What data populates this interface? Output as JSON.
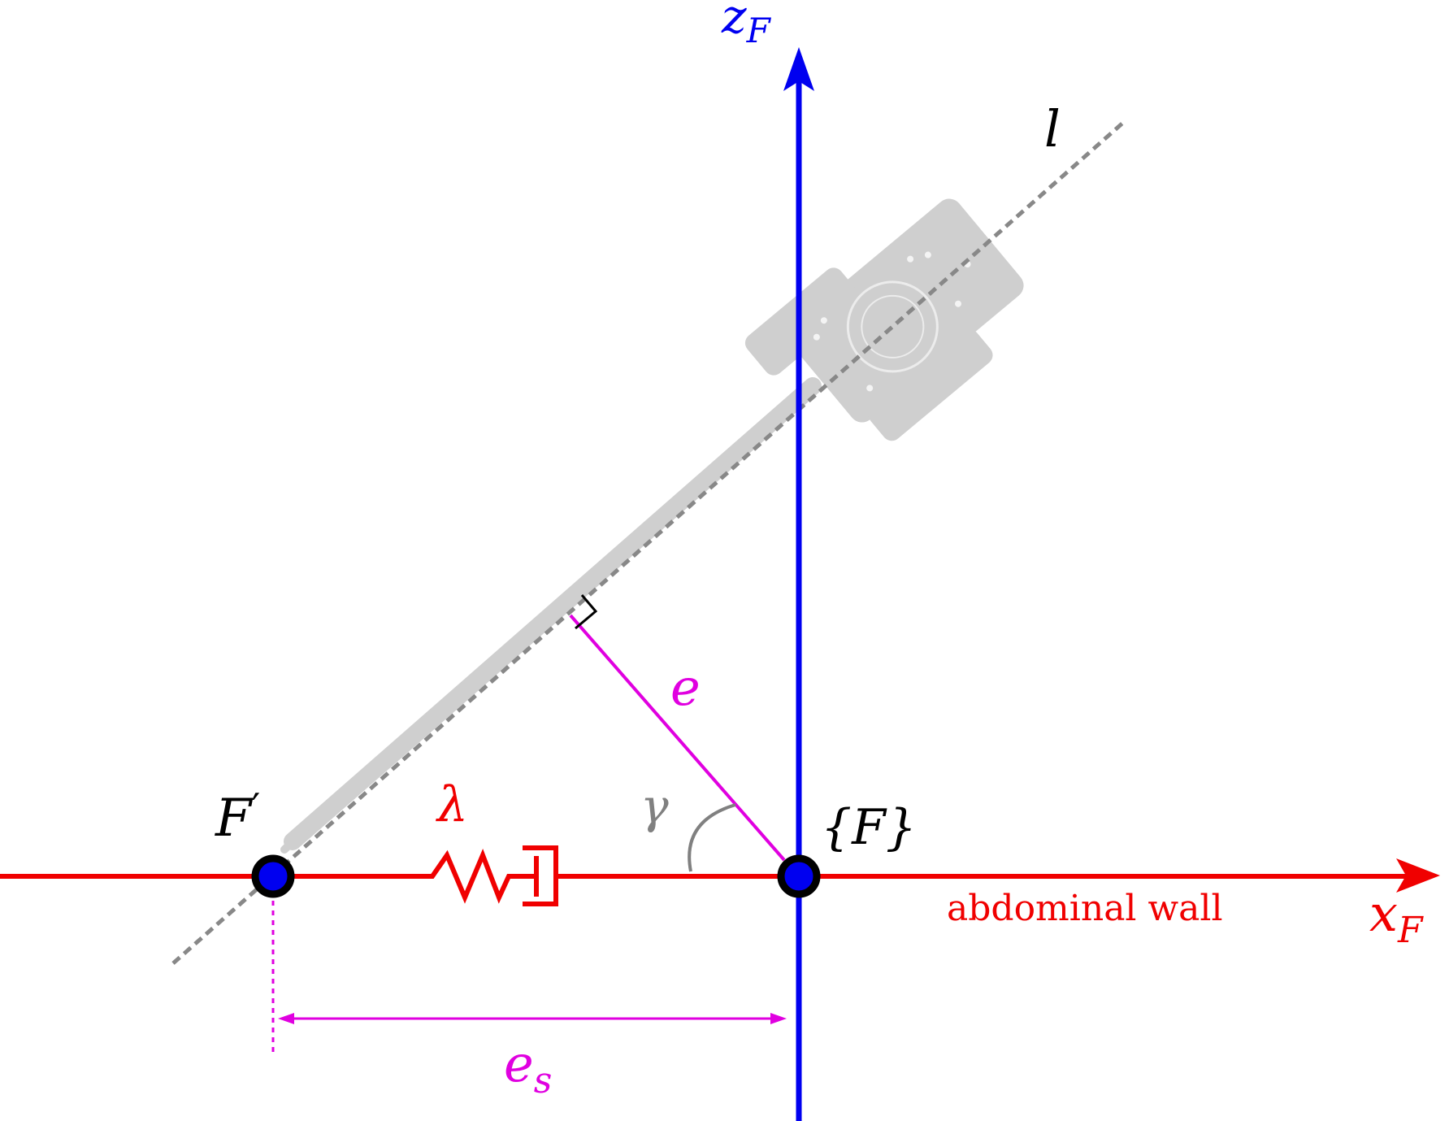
{
  "colors": {
    "wall": "#f00000",
    "z_axis": "#0000f0",
    "distance": "#e000e0",
    "instrument": "#cfcfcf",
    "line_l": "#888888",
    "angle": "#808080",
    "point_fill": "#0000f0",
    "point_stroke": "#000000"
  },
  "labels": {
    "z_axis": {
      "main": "z",
      "sub": "F"
    },
    "x_axis": {
      "main": "x",
      "sub": "F"
    },
    "line": "l",
    "origin": "{F}",
    "pivot": {
      "main": "F",
      "prime": "′"
    },
    "lambda": "λ",
    "e": "e",
    "gamma": "γ",
    "e_s": {
      "main": "e",
      "sub": "s"
    },
    "wall": "abdominal wall"
  },
  "icons": [
    "spring-damper-icon",
    "right-angle-mark-icon",
    "surgical-instrument-icon"
  ]
}
